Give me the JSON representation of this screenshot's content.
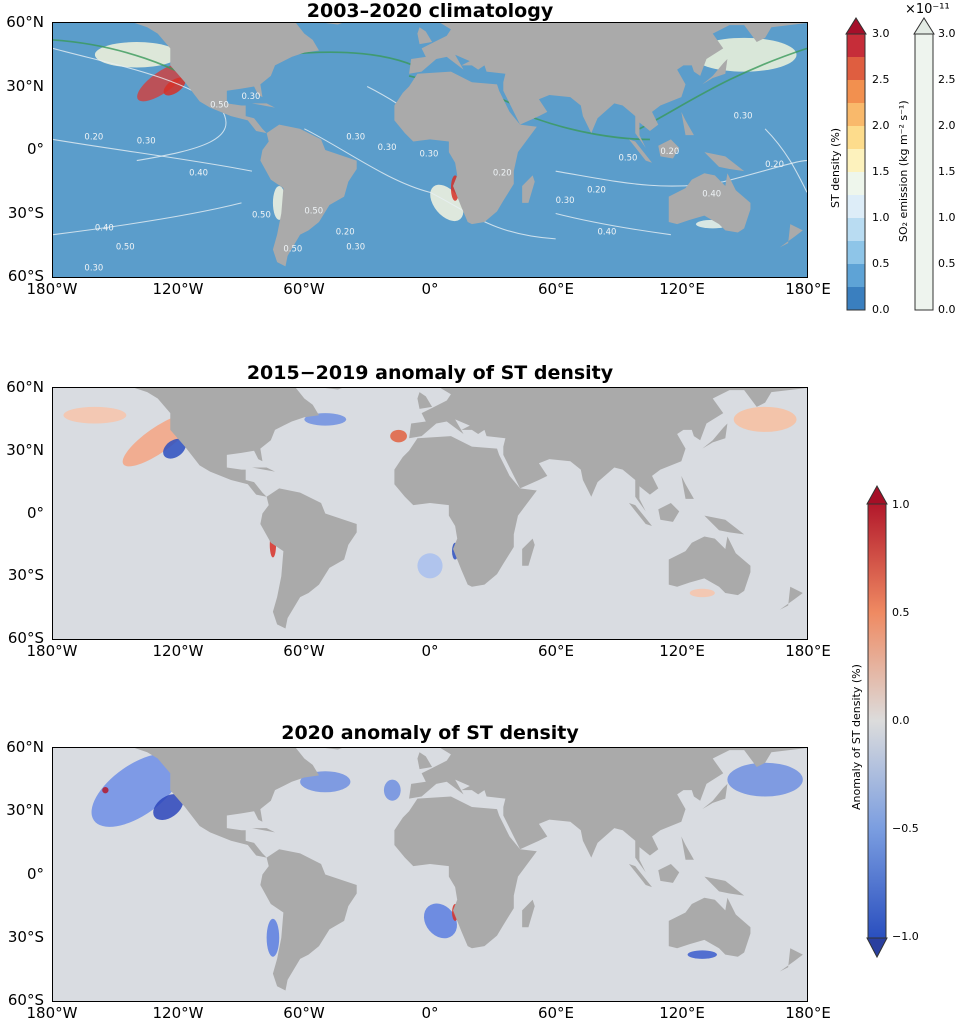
{
  "panels": [
    {
      "title": "2003–2020 climatology",
      "ocean": "#5b9dcb",
      "contour_labels": [
        "0.40",
        "0.50",
        "0.30",
        "0.30",
        "0.50",
        "0.20",
        "0.30",
        "0.40",
        "0.50",
        "0.50",
        "0.30",
        "0.20",
        "0.30",
        "0.30",
        "0.30",
        "0.20",
        "0.30",
        "0.20",
        "0.50",
        "0.20",
        "0.40",
        "0.40",
        "0.30",
        "0.20",
        "0.50"
      ]
    },
    {
      "title": "2015−2019 anomaly of ST density",
      "ocean": "#d9dce1"
    },
    {
      "title": "2020 anomaly of ST density",
      "ocean": "#d9dce1"
    }
  ],
  "lat_ticks": [
    "60°N",
    "30°N",
    "0°",
    "30°S",
    "60°S"
  ],
  "lon_ticks": [
    "180°W",
    "120°W",
    "60°W",
    "0°",
    "60°E",
    "120°E",
    "180°E"
  ],
  "land_color": "#aaaaaa",
  "colorbars": {
    "st_density": {
      "label": "ST density (%)",
      "ticks": [
        "3.0",
        "2.5",
        "2.0",
        "1.5",
        "1.0",
        "0.5",
        "0.0"
      ],
      "range": [
        0,
        3.0
      ],
      "colors": [
        "#3a7fbf",
        "#5ea3d6",
        "#8ec5e8",
        "#b9dcf2",
        "#ddedf8",
        "#eef6ec",
        "#fdf2bd",
        "#fddc8c",
        "#f9b96b",
        "#f2904f",
        "#df5e40",
        "#c62d39"
      ],
      "extend": "max"
    },
    "so2": {
      "label": "SO₂ emission (kg m⁻² s⁻¹)",
      "exponent": "×10⁻¹¹",
      "ticks": [
        "3.0",
        "2.5",
        "2.0",
        "1.5",
        "1.0",
        "0.5",
        "0.0"
      ],
      "range": [
        0,
        3.0
      ],
      "extend": "max"
    },
    "anomaly": {
      "label": "Anomaly of ST density (%)",
      "ticks": [
        "1.0",
        "0.5",
        "0.0",
        "−0.5",
        "−1.0"
      ],
      "range": [
        -1.0,
        1.0
      ],
      "extend": "both"
    }
  }
}
